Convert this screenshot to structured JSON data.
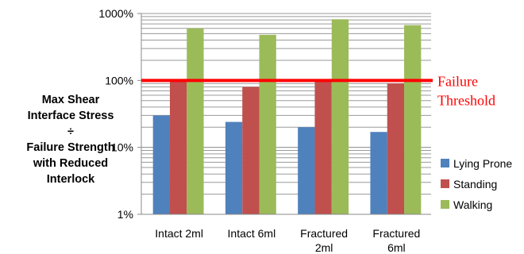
{
  "chart_data": {
    "type": "bar",
    "scale": "log",
    "ylim": [
      1,
      1000
    ],
    "yticks": [
      1,
      10,
      100,
      1000
    ],
    "ytick_labels": [
      "1%",
      "10%",
      "100%",
      "1000%"
    ],
    "grid": true,
    "ylabel_lines": [
      "Max Shear",
      "Interface Stress",
      "÷",
      "Failure Strength",
      "with Reduced",
      "Interlock"
    ],
    "categories": [
      [
        "Intact 2ml"
      ],
      [
        "Intact 6ml"
      ],
      [
        "Fractured",
        "2ml"
      ],
      [
        "Fractured",
        "6ml"
      ]
    ],
    "series": [
      {
        "name": "Lying Prone",
        "color": "#4f81bd",
        "values": [
          30,
          24,
          20,
          17
        ]
      },
      {
        "name": "Standing",
        "color": "#c0504d",
        "values": [
          100,
          80,
          105,
          90
        ]
      },
      {
        "name": "Walking",
        "color": "#9bbb59",
        "values": [
          600,
          480,
          820,
          670
        ]
      }
    ],
    "legend_position": "right",
    "threshold": {
      "value": 100,
      "color": "#ff0000",
      "label_lines": [
        "Failure",
        "Threshold"
      ]
    }
  }
}
